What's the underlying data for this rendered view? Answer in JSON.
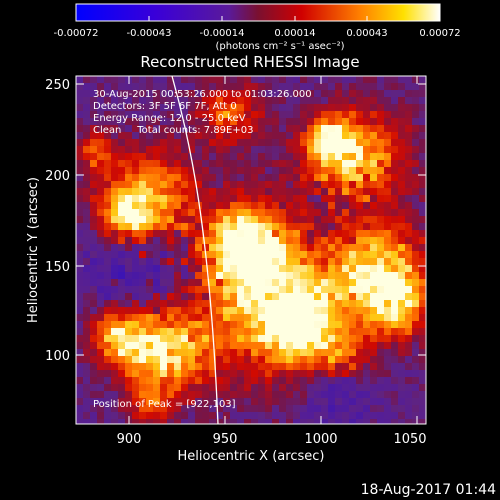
{
  "colorbar": {
    "ticks": [
      "-0.00072",
      "-0.00043",
      "-0.00014",
      "0.00014",
      "0.00043",
      "0.00072"
    ],
    "unit_label": "(photons cm⁻² s⁻¹ asec⁻²)"
  },
  "image": {
    "title": "Reconstructed RHESSI Image",
    "time_range": "30-Aug-2015 00:53:26.000 to 01:03:26.000",
    "detectors": "Detectors: 3F 5F 6F 7F, Att 0",
    "energy_range": "Energy Range: 12.0 - 25.0 keV",
    "algorithm": "Clean     Total counts: 7.89E+03",
    "peak": "Position of Peak = [922,103]"
  },
  "axes": {
    "xlabel": "Heliocentric X (arcsec)",
    "ylabel": "Heliocentric Y (arcsec)",
    "xticks": [
      "900",
      "950",
      "1000",
      "1050"
    ],
    "yticks": [
      "100",
      "150",
      "200",
      "250"
    ]
  },
  "footer": {
    "timestamp": "18-Aug-2017 01:44"
  },
  "colors": {
    "background": "#000000",
    "limb_line": "#ffffff"
  }
}
